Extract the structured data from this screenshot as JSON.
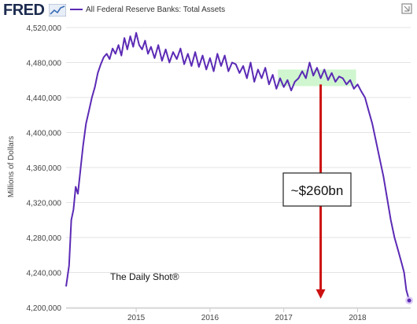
{
  "header": {
    "logo_text": "FRED",
    "legend_label": "All Federal Reserve Banks: Total Assets"
  },
  "icons": [
    "fred-graph-icon",
    "legend-line-icon",
    "download-icon"
  ],
  "colors": {
    "series": "#5b2ab5",
    "arrow": "#cc1111",
    "highlight": "#c8f5c8",
    "grid": "#e3e3e3"
  },
  "annotations": {
    "callout": "~$260bn",
    "watermark": "The Daily Shot®"
  },
  "chart_data": {
    "type": "line",
    "title": "",
    "ylabel": "Millions of Dollars",
    "xlabel": "",
    "ylim": [
      4200000,
      4520000
    ],
    "xlim": [
      2014.05,
      2018.72
    ],
    "grid": "horizontal",
    "yticks": [
      4200000,
      4240000,
      4280000,
      4320000,
      4360000,
      4400000,
      4440000,
      4480000,
      4520000
    ],
    "ytick_labels": [
      "4,200,000",
      "4,240,000",
      "4,280,000",
      "4,320,000",
      "4,360,000",
      "4,400,000",
      "4,440,000",
      "4,480,000",
      "4,520,000"
    ],
    "xticks": [
      2015,
      2016,
      2017,
      2018
    ],
    "xtick_labels": [
      "2015",
      "2016",
      "2017",
      "2018"
    ],
    "highlight_range": {
      "x": [
        2016.92,
        2017.98
      ],
      "y": [
        4453000,
        4472000
      ]
    },
    "arrow": {
      "x": 2017.5,
      "y_from": 4455000,
      "y_to": 4210000
    },
    "series": [
      {
        "name": "All Federal Reserve Banks: Total Assets",
        "x": [
          2014.05,
          2014.09,
          2014.12,
          2014.15,
          2014.18,
          2014.21,
          2014.25,
          2014.28,
          2014.32,
          2014.36,
          2014.4,
          2014.44,
          2014.48,
          2014.52,
          2014.56,
          2014.6,
          2014.64,
          2014.68,
          2014.72,
          2014.76,
          2014.8,
          2014.84,
          2014.88,
          2014.92,
          2014.96,
          2015.0,
          2015.04,
          2015.08,
          2015.12,
          2015.16,
          2015.2,
          2015.25,
          2015.3,
          2015.35,
          2015.4,
          2015.45,
          2015.5,
          2015.55,
          2015.6,
          2015.65,
          2015.7,
          2015.75,
          2015.8,
          2015.85,
          2015.9,
          2015.95,
          2016.0,
          2016.05,
          2016.1,
          2016.15,
          2016.2,
          2016.25,
          2016.3,
          2016.35,
          2016.4,
          2016.45,
          2016.5,
          2016.55,
          2016.6,
          2016.65,
          2016.7,
          2016.75,
          2016.8,
          2016.85,
          2016.9,
          2016.95,
          2017.0,
          2017.05,
          2017.1,
          2017.15,
          2017.2,
          2017.25,
          2017.3,
          2017.35,
          2017.4,
          2017.45,
          2017.5,
          2017.55,
          2017.6,
          2017.65,
          2017.7,
          2017.75,
          2017.8,
          2017.85,
          2017.9,
          2017.95,
          2018.0,
          2018.05,
          2018.1,
          2018.15,
          2018.2,
          2018.25,
          2018.3,
          2018.35,
          2018.4,
          2018.45,
          2018.5,
          2018.55,
          2018.6,
          2018.63,
          2018.66,
          2018.7
        ],
        "y": [
          4224000,
          4248000,
          4300000,
          4312000,
          4338000,
          4330000,
          4362000,
          4385000,
          4410000,
          4425000,
          4440000,
          4452000,
          4468000,
          4478000,
          4486000,
          4490000,
          4484000,
          4496000,
          4490000,
          4500000,
          4488000,
          4508000,
          4495000,
          4510000,
          4498000,
          4514000,
          4500000,
          4495000,
          4505000,
          4490000,
          4498000,
          4485000,
          4500000,
          4482000,
          4495000,
          4480000,
          4492000,
          4484000,
          4496000,
          4478000,
          4490000,
          4476000,
          4492000,
          4475000,
          4488000,
          4472000,
          4485000,
          4470000,
          4490000,
          4476000,
          4488000,
          4470000,
          4480000,
          4478000,
          4468000,
          4476000,
          4462000,
          4480000,
          4458000,
          4472000,
          4462000,
          4474000,
          4455000,
          4466000,
          4450000,
          4462000,
          4452000,
          4460000,
          4448000,
          4458000,
          4462000,
          4470000,
          4462000,
          4480000,
          4465000,
          4474000,
          4462000,
          4472000,
          4460000,
          4468000,
          4458000,
          4464000,
          4462000,
          4455000,
          4460000,
          4450000,
          4455000,
          4447000,
          4440000,
          4425000,
          4410000,
          4390000,
          4370000,
          4350000,
          4325000,
          4300000,
          4280000,
          4265000,
          4250000,
          4240000,
          4220000,
          4208000
        ]
      }
    ]
  }
}
